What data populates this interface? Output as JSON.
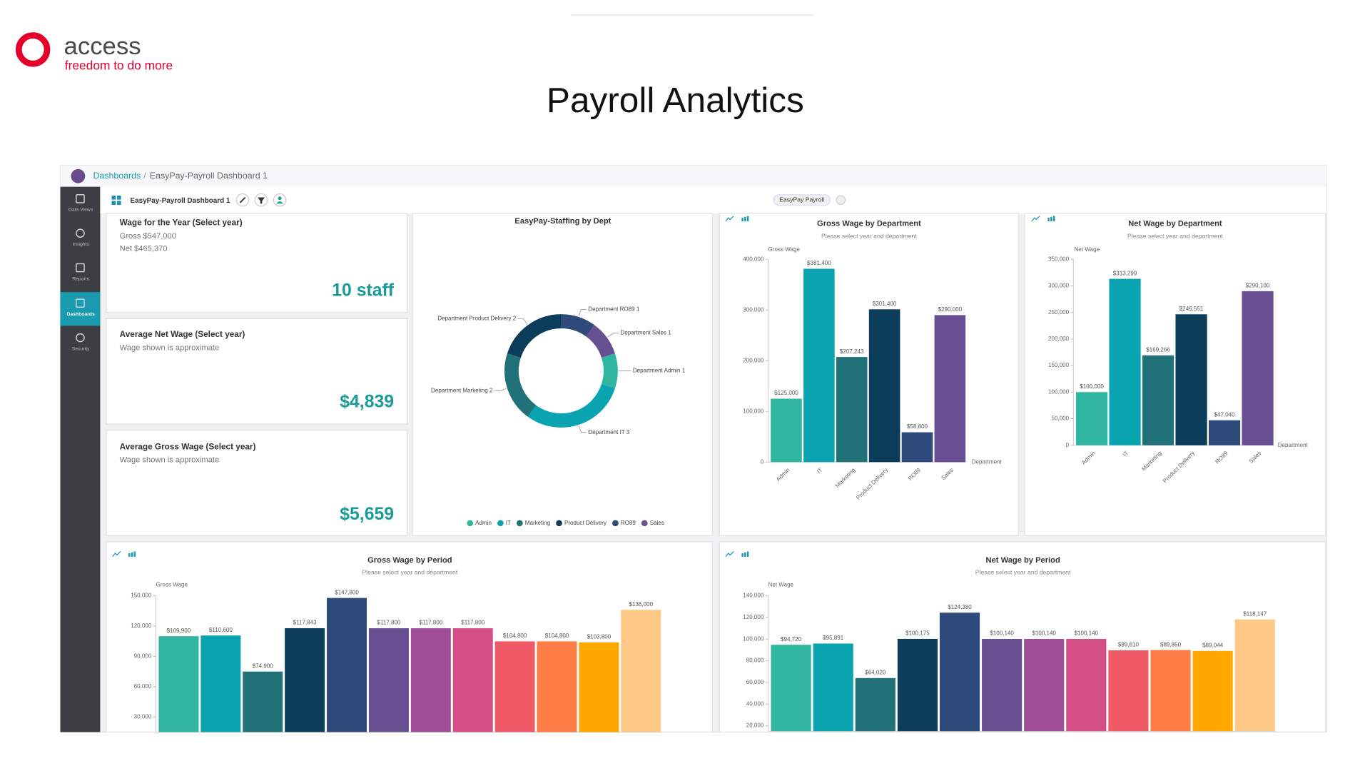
{
  "logo": {
    "name": "access",
    "tagline": "freedom to do more"
  },
  "page_title": "Payroll Analytics",
  "breadcrumb": {
    "root": "Dashboards",
    "current": "EasyPay-Payroll Dashboard 1"
  },
  "sidebar": [
    "Data Views",
    "Insights",
    "Reports",
    "Dashboards",
    "Security"
  ],
  "toolbar": {
    "title": "EasyPay-Payroll Dashboard 1",
    "tag": "EasyPay Payroll"
  },
  "kpis": [
    {
      "title": "Wage for the Year (Select year)",
      "lines": [
        "Gross $547,000",
        "Net $465,370"
      ],
      "value": "10 staff"
    },
    {
      "title": "Average Net Wage (Select year)",
      "lines": [
        "Wage shown is approximate"
      ],
      "value": "$4,839"
    },
    {
      "title": "Average Gross Wage (Select year)",
      "lines": [
        "Wage shown is approximate"
      ],
      "value": "$5,659"
    }
  ],
  "chart_data": [
    {
      "type": "donut",
      "title": "EasyPay-Staffing by Dept",
      "categories": [
        "Admin",
        "IT",
        "Marketing",
        "Product Delivery",
        "RO89",
        "Sales"
      ],
      "values": [
        1,
        3,
        2,
        2,
        1,
        1
      ],
      "value_labels": [
        "Department Admin 1",
        "Department IT 3",
        "Department Marketing 2",
        "Department Product Delivery 2",
        "Department RO89 1",
        "Department Sales 1"
      ],
      "colors": [
        "#2fb5a0",
        "#0aa3b0",
        "#207178",
        "#0b3c5a",
        "#2e4a7a",
        "#674f91"
      ]
    },
    {
      "type": "bar",
      "title": "Gross Wage by Department",
      "subtitle": "Please select year and department",
      "y_label": "Gross Wage",
      "x_label": "Department",
      "categories": [
        "Admin",
        "IT",
        "Marketing",
        "Product Delivery",
        "RO89",
        "Sales"
      ],
      "values": [
        125000,
        381400,
        207243,
        301400,
        58800,
        290000
      ],
      "value_labels": [
        "$125,000",
        "$381,400",
        "$207,243",
        "$301,400",
        "$58,800",
        "$290,000"
      ],
      "colors": [
        "#2fb5a0",
        "#0aa3b0",
        "#207178",
        "#0b3c5a",
        "#2e4a7a",
        "#674f91"
      ],
      "ylim": [
        0,
        400000
      ],
      "yticks": [
        0,
        {
          "value": 100000,
          "label": "100,000"
        },
        {
          "value": 200000,
          "label": "200,000"
        },
        {
          "value": 300000,
          "label": "300,000"
        },
        {
          "value": 400000,
          "label": "400,000"
        }
      ]
    },
    {
      "type": "bar",
      "title": "Net Wage by Department",
      "subtitle": "Please select year and department",
      "y_label": "Net Wage",
      "x_label": "Department",
      "categories": [
        "Admin",
        "IT",
        "Marketing",
        "Product Delivery",
        "RO89",
        "Sales"
      ],
      "values": [
        100000,
        313299,
        169266,
        246551,
        47040,
        290100
      ],
      "value_labels": [
        "$100,000",
        "$313,299",
        "$169,266",
        "$246,551",
        "$47,040",
        "$290,100"
      ],
      "colors": [
        "#2fb5a0",
        "#0aa3b0",
        "#207178",
        "#0b3c5a",
        "#2e4a7a",
        "#674f91"
      ],
      "ylim": [
        0,
        350000
      ],
      "yticks": [
        0,
        {
          "value": 50000,
          "label": "50,000"
        },
        {
          "value": 100000,
          "label": "100,000"
        },
        {
          "value": 150000,
          "label": "150,000"
        },
        {
          "value": 200000,
          "label": "200,000"
        },
        {
          "value": 250000,
          "label": "250,000"
        },
        {
          "value": 300000,
          "label": "300,000"
        },
        {
          "value": 350000,
          "label": "350,000"
        }
      ]
    },
    {
      "type": "bar",
      "title": "Gross Wage by Period",
      "subtitle": "Please select year and department",
      "y_label": "Gross Wage",
      "values": [
        109900,
        110600,
        74900,
        117843,
        147800,
        117800,
        117800,
        117800,
        104800,
        104800,
        103800,
        136000
      ],
      "value_labels": [
        "$109,900",
        "$110,600",
        "$74,900",
        "$117,843",
        "$147,800",
        "$117,800",
        "$117,800",
        "$117,800",
        "$104,800",
        "$104,800",
        "$103,800",
        "$136,000"
      ],
      "colors": [
        "#2fb5a0",
        "#0aa3b0",
        "#207178",
        "#0b3c5a",
        "#2e4a7a",
        "#674f91",
        "#9e4f96",
        "#d44f86",
        "#f05a67",
        "#fd7d44",
        "#ffa600",
        "#fec987"
      ],
      "ylim": [
        15000,
        150000
      ],
      "yticks": [
        {
          "value": 30000,
          "label": "30,000"
        },
        {
          "value": 60000,
          "label": "60,000"
        },
        {
          "value": 90000,
          "label": "90,000"
        },
        {
          "value": 120000,
          "label": "120,000"
        },
        {
          "value": 150000,
          "label": "150,000"
        }
      ]
    },
    {
      "type": "bar",
      "title": "Net Wage by Period",
      "subtitle": "Please select year and department",
      "y_label": "Net Wage",
      "values": [
        94720,
        95891,
        64020,
        100175,
        124380,
        100140,
        100140,
        100140,
        89610,
        89850,
        89044,
        118147
      ],
      "value_labels": [
        "$94,720",
        "$95,891",
        "$64,020",
        "$100,175",
        "$124,380",
        "$100,140",
        "$100,140",
        "$100,140",
        "$89,610",
        "$89,850",
        "$89,044",
        "$118,147"
      ],
      "colors": [
        "#2fb5a0",
        "#0aa3b0",
        "#207178",
        "#0b3c5a",
        "#2e4a7a",
        "#674f91",
        "#9e4f96",
        "#d44f86",
        "#f05a67",
        "#fd7d44",
        "#ffa600",
        "#fec987"
      ],
      "ylim": [
        15000,
        140000
      ],
      "yticks": [
        {
          "value": 20000,
          "label": "20,000"
        },
        {
          "value": 40000,
          "label": "40,000"
        },
        {
          "value": 60000,
          "label": "60,000"
        },
        {
          "value": 80000,
          "label": "80,000"
        },
        {
          "value": 100000,
          "label": "100,000"
        },
        {
          "value": 120000,
          "label": "120,000"
        },
        {
          "value": 140000,
          "label": "140,000"
        }
      ]
    }
  ]
}
